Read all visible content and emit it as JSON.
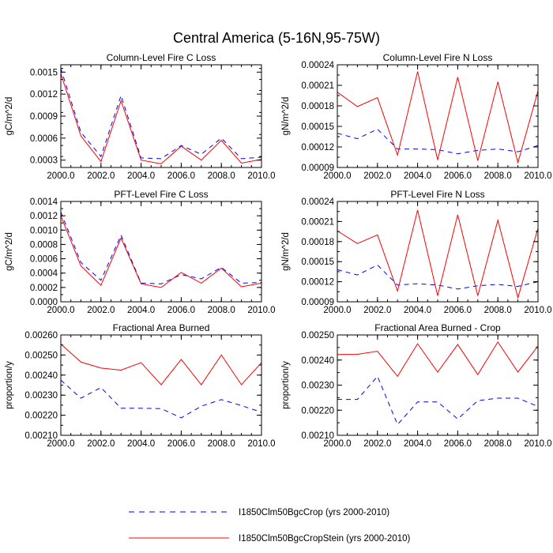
{
  "figure": {
    "title": "Central America (5-16N,95-75W)"
  },
  "legend": {
    "entries": [
      {
        "label": "I1850Clm50BgcCrop (yrs 2000-2010)",
        "color": "#0000ff",
        "dash": "dashed"
      },
      {
        "label": "I1850Clm50BgcCropStein (yrs 2000-2010)",
        "color": "#ff0000",
        "dash": "solid"
      }
    ]
  },
  "chart_data": [
    {
      "type": "line",
      "title": "Column-Level Fire C Loss",
      "ylabel": "gC/m^2/d",
      "xlim": [
        2000,
        2010
      ],
      "ylim": [
        0.0002,
        0.0016
      ],
      "xticks": [
        2000,
        2002,
        2004,
        2006,
        2008,
        2010
      ],
      "xtick_labels": [
        "2000.0",
        "2002.0",
        "2004.0",
        "2006.0",
        "2008.0",
        "2010.0"
      ],
      "yticks": [
        0.0003,
        0.0006,
        0.0009,
        0.0012,
        0.0015
      ],
      "ytick_labels": [
        "0.0003",
        "0.0006",
        "0.0009",
        "0.0012",
        "0.0015"
      ],
      "x": [
        2000,
        2001,
        2002,
        2003,
        2004,
        2005,
        2006,
        2007,
        2008,
        2009,
        2010
      ],
      "series": [
        {
          "name": "I1850Clm50BgcCrop (yrs 2000-2010)",
          "values": [
            0.00155,
            0.00068,
            0.00035,
            0.00118,
            0.00033,
            0.00032,
            0.0005,
            0.00038,
            0.0006,
            0.00032,
            0.00034
          ]
        },
        {
          "name": "I1850Clm50BgcCropStein (yrs 2000-2010)",
          "values": [
            0.00148,
            0.00063,
            0.00028,
            0.00111,
            0.0003,
            0.00025,
            0.00049,
            0.0003,
            0.00057,
            0.00026,
            0.00031
          ]
        }
      ]
    },
    {
      "type": "line",
      "title": "Column-Level Fire N Loss",
      "ylabel": "gN/m^2/d",
      "xlim": [
        2000,
        2010
      ],
      "ylim": [
        9e-05,
        0.00024
      ],
      "xticks": [
        2000,
        2002,
        2004,
        2006,
        2008,
        2010
      ],
      "xtick_labels": [
        "2000.0",
        "2002.0",
        "2004.0",
        "2006.0",
        "2008.0",
        "2010.0"
      ],
      "yticks": [
        9e-05,
        0.00012,
        0.00015,
        0.00018,
        0.00021,
        0.00024
      ],
      "ytick_labels": [
        "0.00009",
        "0.00012",
        "0.00015",
        "0.00018",
        "0.00021",
        "0.00024"
      ],
      "x": [
        2000,
        2001,
        2002,
        2003,
        2004,
        2005,
        2006,
        2007,
        2008,
        2009,
        2010
      ],
      "series": [
        {
          "name": "I1850Clm50BgcCrop (yrs 2000-2010)",
          "values": [
            0.00014,
            0.000132,
            0.000146,
            0.000117,
            0.000117,
            0.000116,
            0.00011,
            0.000115,
            0.000117,
            0.000113,
            0.000122
          ]
        },
        {
          "name": "I1850Clm50BgcCropStein (yrs 2000-2010)",
          "values": [
            0.0002,
            0.000179,
            0.000192,
            0.000108,
            0.00023,
            0.000101,
            0.000222,
            0.0001,
            0.000215,
            9.7e-05,
            0.000202
          ]
        }
      ]
    },
    {
      "type": "line",
      "title": "PFT-Level Fire C Loss",
      "ylabel": "gC/m^2/d",
      "xlim": [
        2000,
        2010
      ],
      "ylim": [
        0.0,
        0.0014
      ],
      "xticks": [
        2000,
        2002,
        2004,
        2006,
        2008,
        2010
      ],
      "xtick_labels": [
        "2000.0",
        "2002.0",
        "2004.0",
        "2006.0",
        "2008.0",
        "2010.0"
      ],
      "yticks": [
        0.0,
        0.0002,
        0.0004,
        0.0006,
        0.0008,
        0.001,
        0.0012,
        0.0014
      ],
      "ytick_labels": [
        "0.0000",
        "0.0002",
        "0.0004",
        "0.0006",
        "0.0008",
        "0.0010",
        "0.0012",
        "0.0014"
      ],
      "x": [
        2000,
        2001,
        2002,
        2003,
        2004,
        2005,
        2006,
        2007,
        2008,
        2009,
        2010
      ],
      "series": [
        {
          "name": "I1850Clm50BgcCrop (yrs 2000-2010)",
          "values": [
            0.00125,
            0.00055,
            0.0003,
            0.00093,
            0.00026,
            0.00025,
            0.00038,
            0.00032,
            0.00048,
            0.00026,
            0.00027
          ]
        },
        {
          "name": "I1850Clm50BgcCropStein (yrs 2000-2010)",
          "values": [
            0.0012,
            0.0005,
            0.00023,
            0.00089,
            0.00025,
            0.0002,
            0.00041,
            0.00026,
            0.00047,
            0.00021,
            0.00026
          ]
        }
      ]
    },
    {
      "type": "line",
      "title": "PFT-Level Fire N Loss",
      "ylabel": "gN/m^2/d",
      "xlim": [
        2000,
        2010
      ],
      "ylim": [
        9e-05,
        0.00024
      ],
      "xticks": [
        2000,
        2002,
        2004,
        2006,
        2008,
        2010
      ],
      "xtick_labels": [
        "2000.0",
        "2002.0",
        "2004.0",
        "2006.0",
        "2008.0",
        "2010.0"
      ],
      "yticks": [
        9e-05,
        0.00012,
        0.00015,
        0.00018,
        0.00021,
        0.00024
      ],
      "ytick_labels": [
        "0.00009",
        "0.00012",
        "0.00015",
        "0.00018",
        "0.00021",
        "0.00024"
      ],
      "x": [
        2000,
        2001,
        2002,
        2003,
        2004,
        2005,
        2006,
        2007,
        2008,
        2009,
        2010
      ],
      "series": [
        {
          "name": "I1850Clm50BgcCrop (yrs 2000-2010)",
          "values": [
            0.000138,
            0.00013,
            0.000145,
            0.000115,
            0.000117,
            0.000115,
            0.000109,
            0.000114,
            0.000116,
            0.000113,
            0.00012
          ]
        },
        {
          "name": "I1850Clm50BgcCropStein (yrs 2000-2010)",
          "values": [
            0.000196,
            0.000177,
            0.00019,
            0.000106,
            0.000227,
            9.9e-05,
            0.00022,
            9.9e-05,
            0.000212,
            9.6e-05,
            0.0002
          ]
        }
      ]
    },
    {
      "type": "line",
      "title": "Fractional Area Burned",
      "ylabel": "proportion/y",
      "xlim": [
        2000,
        2010
      ],
      "ylim": [
        0.0021,
        0.0026
      ],
      "xticks": [
        2000,
        2002,
        2004,
        2006,
        2008,
        2010
      ],
      "xtick_labels": [
        "2000.0",
        "2002.0",
        "2004.0",
        "2006.0",
        "2008.0",
        "2010.0"
      ],
      "yticks": [
        0.0021,
        0.0022,
        0.0023,
        0.0024,
        0.0025,
        0.0026
      ],
      "ytick_labels": [
        "0.00210",
        "0.00220",
        "0.00230",
        "0.00240",
        "0.00250",
        "0.00260"
      ],
      "x": [
        2000,
        2001,
        2002,
        2003,
        2004,
        2005,
        2006,
        2007,
        2008,
        2009,
        2010
      ],
      "series": [
        {
          "name": "I1850Clm50BgcCrop (yrs 2000-2010)",
          "values": [
            0.002375,
            0.002285,
            0.002338,
            0.002235,
            0.002235,
            0.002233,
            0.002187,
            0.002245,
            0.002278,
            0.002248,
            0.002215
          ]
        },
        {
          "name": "I1850Clm50BgcCropStein (yrs 2000-2010)",
          "values": [
            0.002555,
            0.002465,
            0.002435,
            0.002425,
            0.002462,
            0.002352,
            0.002478,
            0.002352,
            0.0025,
            0.002352,
            0.002462
          ]
        }
      ]
    },
    {
      "type": "line",
      "title": "Fractional Area Burned - Crop",
      "ylabel": "proportion/y",
      "xlim": [
        2000,
        2010
      ],
      "ylim": [
        0.0021,
        0.0025
      ],
      "xticks": [
        2000,
        2002,
        2004,
        2006,
        2008,
        2010
      ],
      "xtick_labels": [
        "2000.0",
        "2002.0",
        "2004.0",
        "2006.0",
        "2008.0",
        "2010.0"
      ],
      "yticks": [
        0.0021,
        0.0022,
        0.0023,
        0.0024,
        0.0025
      ],
      "ytick_labels": [
        "0.00210",
        "0.00220",
        "0.00230",
        "0.00240",
        "0.00250"
      ],
      "x": [
        2000,
        2001,
        2002,
        2003,
        2004,
        2005,
        2006,
        2007,
        2008,
        2009,
        2010
      ],
      "series": [
        {
          "name": "I1850Clm50BgcCrop (yrs 2000-2010)",
          "values": [
            0.002243,
            0.002243,
            0.002335,
            0.002143,
            0.002233,
            0.002233,
            0.002165,
            0.002238,
            0.002248,
            0.002248,
            0.002215
          ]
        },
        {
          "name": "I1850Clm50BgcCropStein (yrs 2000-2010)",
          "values": [
            0.002422,
            0.002423,
            0.002435,
            0.002335,
            0.002465,
            0.002352,
            0.002462,
            0.002342,
            0.002472,
            0.002352,
            0.002456
          ]
        }
      ]
    }
  ]
}
